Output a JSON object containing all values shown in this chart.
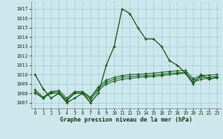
{
  "background_color": "#cce8ec",
  "grid_color": "#aaccd4",
  "line_color": "#1a5c1a",
  "xlabel": "Graphe pression niveau de la mer (hPa)",
  "ylim": [
    1006.4,
    1017.8
  ],
  "yticks": [
    1007,
    1008,
    1009,
    1010,
    1011,
    1012,
    1013,
    1014,
    1015,
    1016,
    1017
  ],
  "xlim": [
    -0.5,
    23.5
  ],
  "xticks": [
    0,
    1,
    2,
    3,
    4,
    5,
    6,
    7,
    8,
    9,
    10,
    11,
    12,
    13,
    14,
    15,
    16,
    17,
    18,
    19,
    20,
    21,
    22,
    23
  ],
  "series_main": [
    1010,
    1008.5,
    1007.5,
    1008,
    1007,
    1007.5,
    1008,
    1007,
    1008,
    1011,
    1013,
    1017,
    1016.5,
    1015,
    1013.8,
    1013.8,
    1013,
    1011.5,
    1011,
    1010.2,
    1009,
    1010,
    1009.5,
    1009.7
  ],
  "series_b1": [
    1008,
    1007.5,
    1008,
    1008,
    1007.2,
    1008,
    1008,
    1007.3,
    1008.3,
    1009,
    1009.3,
    1009.5,
    1009.6,
    1009.7,
    1009.75,
    1009.8,
    1009.9,
    1010.0,
    1010.1,
    1010.15,
    1009.2,
    1009.5,
    1009.6,
    1009.65
  ],
  "series_b2": [
    1008.2,
    1007.5,
    1008.1,
    1008.15,
    1007.3,
    1008.1,
    1008.1,
    1007.5,
    1008.5,
    1009.2,
    1009.5,
    1009.7,
    1009.8,
    1009.85,
    1009.9,
    1009.95,
    1010.05,
    1010.15,
    1010.2,
    1010.25,
    1009.4,
    1009.7,
    1009.75,
    1009.8
  ],
  "series_b3": [
    1008.4,
    1007.6,
    1008.2,
    1008.3,
    1007.5,
    1008.2,
    1008.2,
    1007.6,
    1008.7,
    1009.4,
    1009.7,
    1009.9,
    1010.0,
    1010.05,
    1010.1,
    1010.15,
    1010.25,
    1010.35,
    1010.4,
    1010.45,
    1009.6,
    1009.9,
    1009.95,
    1010.0
  ]
}
